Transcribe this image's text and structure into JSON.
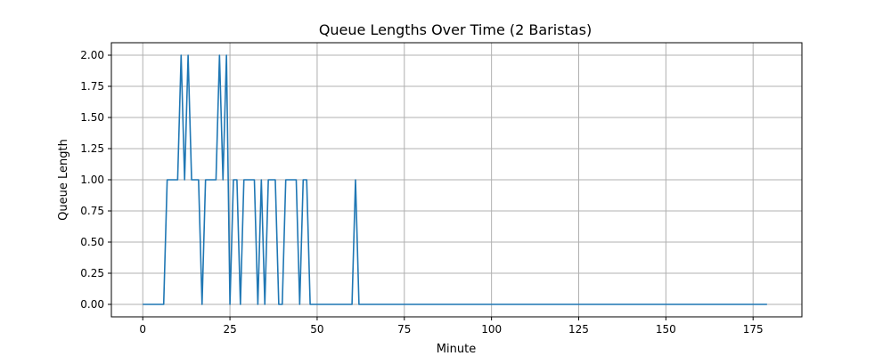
{
  "chart_data": {
    "type": "line",
    "title": "Queue Lengths Over Time (2 Baristas)",
    "xlabel": "Minute",
    "ylabel": "Queue Length",
    "xlim": [
      -9,
      189
    ],
    "ylim": [
      -0.1,
      2.1
    ],
    "xticks": [
      0,
      25,
      50,
      75,
      100,
      125,
      150,
      175
    ],
    "yticks": [
      0.0,
      0.25,
      0.5,
      0.75,
      1.0,
      1.25,
      1.5,
      1.75,
      2.0
    ],
    "xtick_labels": [
      "0",
      "25",
      "50",
      "75",
      "100",
      "125",
      "150",
      "175"
    ],
    "ytick_labels": [
      "0.00",
      "0.25",
      "0.50",
      "0.75",
      "1.00",
      "1.25",
      "1.50",
      "1.75",
      "2.00"
    ],
    "grid": true,
    "series_color": "#1f77b4",
    "x": [
      0,
      6,
      7,
      10,
      11,
      12,
      13,
      14,
      16,
      17,
      18,
      21,
      22,
      23,
      24,
      25,
      26,
      27,
      28,
      29,
      32,
      33,
      34,
      35,
      36,
      38,
      39,
      40,
      41,
      44,
      45,
      46,
      47,
      48,
      60,
      61,
      62,
      179
    ],
    "y": [
      0,
      0,
      1,
      1,
      2,
      1,
      2,
      1,
      1,
      0,
      1,
      1,
      2,
      1,
      2,
      0,
      1,
      1,
      0,
      1,
      1,
      0,
      1,
      0,
      1,
      1,
      0,
      0,
      1,
      1,
      0,
      1,
      1,
      0,
      0,
      1,
      0,
      0
    ]
  }
}
